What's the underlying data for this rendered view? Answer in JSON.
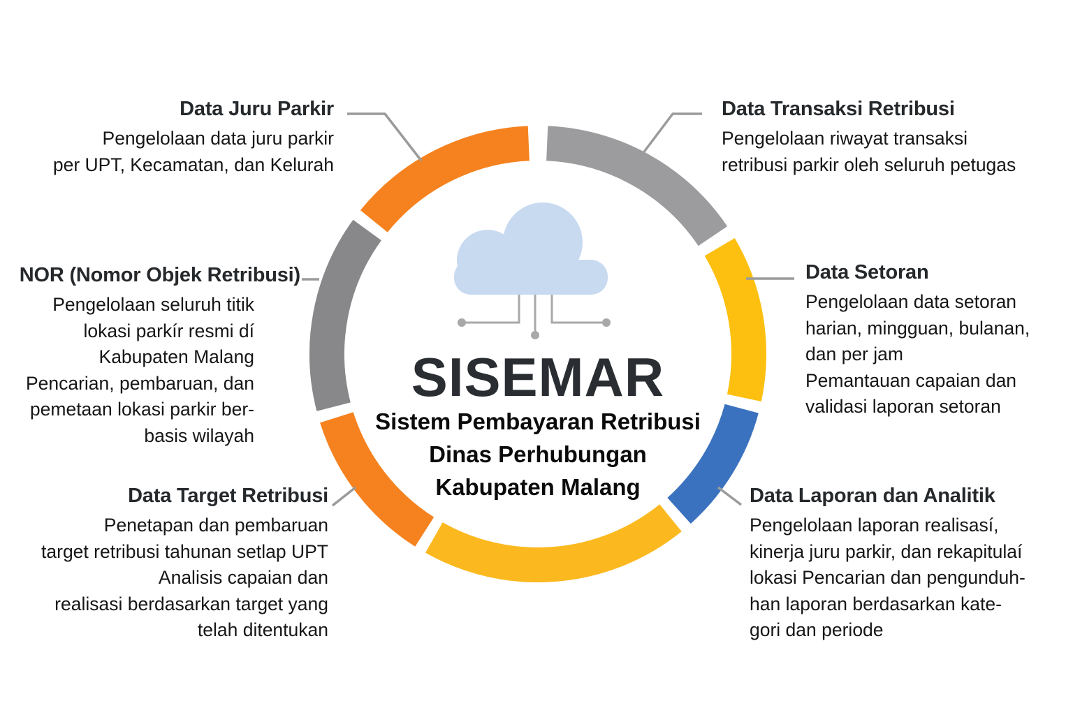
{
  "title": "SISEMAR",
  "subtitle_lines": [
    "Sistem Pembayaran Retribusi",
    "Dinas Perhubungan",
    "Kabupaten Malang"
  ],
  "colors": {
    "orange": "#F5821F",
    "gray_light": "#9C9C9E",
    "gray_dark": "#88888B",
    "yellow_right": "#FDC010",
    "yellow_bottom": "#FBB91F",
    "blue": "#3B72BF",
    "connector": "#9B9B9B",
    "cloud_fill": "#C8DAF0",
    "cloud_line": "#A8A8A8"
  },
  "icons": {
    "center": "cloud-network-icon"
  },
  "sections": {
    "juru_parkir": {
      "heading": "Data Juru Parkir",
      "body": [
        "Pengelolaan data juru parkir",
        "per UPT, Kecamatan, dan Kelurah"
      ]
    },
    "transaksi": {
      "heading": "Data Transaksi Retribusi",
      "body": [
        "Pengelolaan riwayat transaksi",
        "retribusi parkir oleh seluruh petugas"
      ]
    },
    "nor": {
      "heading": "NOR (Nomor Objek Retribusi)",
      "body": [
        "Pengelolaan seluruh titik",
        "lokasi parkír resmi dí",
        "Kabupaten Malang",
        "Pencarian, pembaruan, dan",
        "pemetaan lokasi parkir ber-",
        "basis wilayah"
      ]
    },
    "setoran": {
      "heading": "Data Setoran",
      "body": [
        "Pengelolaan data setoran",
        "harian, mingguan, bulanan,",
        "dan per jam",
        "Pemantauan capaian dan",
        "validasi laporan setoran"
      ]
    },
    "target": {
      "heading": "Data Target Retribusi",
      "body": [
        "Penetapan dan pembaruan",
        "target retribusi tahunan setlap UPT",
        "Analisis capaian dan",
        "realisasi berdasarkan target yang",
        "telah ditentukan"
      ]
    },
    "laporan": {
      "heading": "Data Laporan dan Analitik",
      "body": [
        "Pengelolaan laporan realisasí,",
        "kinerja juru parkir, dan rekapitulaí",
        "lokasi Pencarian dan pengunduh-",
        "han laporan berdasarkan kate-",
        "gori dan periode"
      ]
    }
  }
}
